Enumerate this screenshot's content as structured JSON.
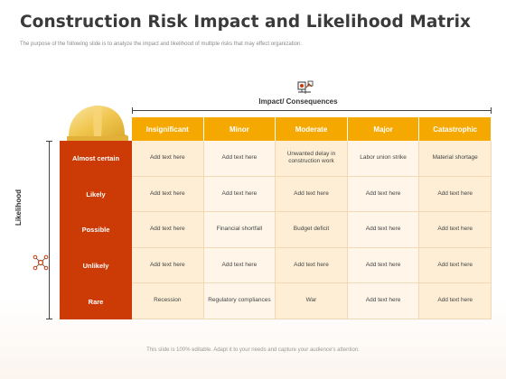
{
  "slide": {
    "title": "Construction Risk Impact and Likelihood Matrix",
    "subtitle": "The purpose of the following slide is to analyze the impact and likelihood  of multiple  risks that may  effect organization.",
    "footer": "This slide is 100% editable. Adapt it to your needs and capture your audience's attention."
  },
  "axes": {
    "impact_label": "Impact/ Consequences",
    "likelihood_label": "Likelihood"
  },
  "columns": [
    "Insignificant",
    "Minor",
    "Moderate",
    "Major",
    "Catastrophic"
  ],
  "rows": [
    {
      "label": "Almost certain",
      "cells": [
        "Add text here",
        "Add text here",
        "Unwanted delay in construction work",
        "Labor union strike",
        "Material shortage"
      ]
    },
    {
      "label": "Likely",
      "cells": [
        "Add text here",
        "Add text here",
        "Add text here",
        "Add text here",
        "Add text here"
      ]
    },
    {
      "label": "Possible",
      "cells": [
        "Add text here",
        "Financial shortfall",
        "Budget deficit",
        "Add text here",
        "Add text here"
      ]
    },
    {
      "label": "Unlikely",
      "cells": [
        "Add text here",
        "Add text here",
        "Add text here",
        "Add text here",
        "Add text here"
      ]
    },
    {
      "label": "Rare",
      "cells": [
        "Recession",
        "Regulatory compliances",
        "War",
        "Add text here",
        "Add text here"
      ]
    }
  ],
  "colors": {
    "header": "#f5a800",
    "row_panel": "#cc3a05",
    "cell": "#fdeed5"
  },
  "icons": {
    "impact": "risk-chart-icon",
    "likelihood": "network-icon",
    "helmet": "hard-hat-icon"
  }
}
